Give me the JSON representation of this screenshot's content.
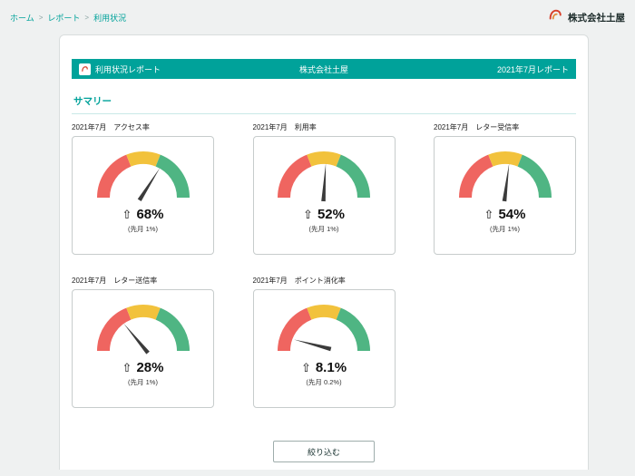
{
  "breadcrumb": {
    "items": [
      "ホーム",
      "レポート",
      "利用状況"
    ],
    "separator": ">"
  },
  "brand": {
    "name": "株式会社土屋"
  },
  "report_header": {
    "title": "利用状況レポート",
    "company": "株式会社土屋",
    "period": "2021年7月レポート"
  },
  "section": {
    "title": "サマリー"
  },
  "filter_button": {
    "label": "絞り込む"
  },
  "icons": {
    "up_arrow": "⇧"
  },
  "colors": {
    "teal": "#00a29a",
    "red": "#ef6560",
    "yellow": "#f2c23c",
    "green": "#4fb583",
    "needle": "#3b3b3b"
  },
  "chart_data": {
    "type": "gauge",
    "min": 0,
    "max": 100,
    "segments": [
      {
        "from": 0,
        "to": 38,
        "color": "red"
      },
      {
        "from": 38,
        "to": 62,
        "color": "yellow"
      },
      {
        "from": 62,
        "to": 100,
        "color": "green"
      }
    ],
    "gauges": [
      {
        "period": "2021年7月",
        "metric": "アクセス率",
        "value": 68,
        "display": "68%",
        "delta_label": "(先月 1%)"
      },
      {
        "period": "2021年7月",
        "metric": "利用率",
        "value": 52,
        "display": "52%",
        "delta_label": "(先月 1%)"
      },
      {
        "period": "2021年7月",
        "metric": "レター受信率",
        "value": 54,
        "display": "54%",
        "delta_label": "(先月 1%)"
      },
      {
        "period": "2021年7月",
        "metric": "レター送信率",
        "value": 28,
        "display": "28%",
        "delta_label": "(先月 1%)"
      },
      {
        "period": "2021年7月",
        "metric": "ポイント消化率",
        "value": 8.1,
        "display": "8.1%",
        "delta_label": "(先月 0.2%)"
      }
    ]
  }
}
